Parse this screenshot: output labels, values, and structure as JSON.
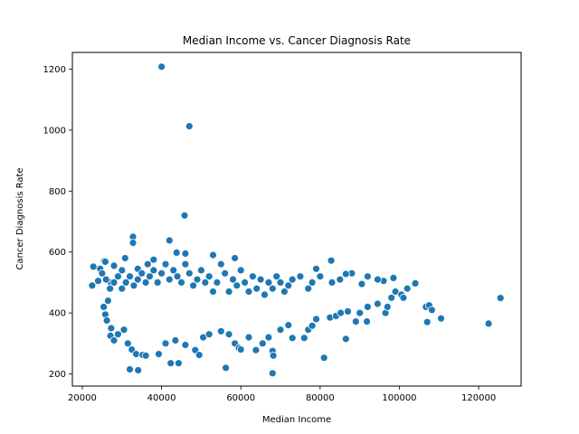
{
  "chart_data": {
    "type": "scatter",
    "title": "Median Income vs. Cancer Diagnosis Rate",
    "xlabel": "Median Income",
    "ylabel": "Cancer Diagnosis Rate",
    "xlim": [
      17500,
      130700
    ],
    "ylim": [
      160,
      1255
    ],
    "xticks": [
      20000,
      40000,
      60000,
      80000,
      100000,
      120000
    ],
    "yticks": [
      200,
      400,
      600,
      800,
      1000,
      1200
    ],
    "grid": false,
    "legend": "none",
    "point_color": "#1f77b4",
    "series": [
      {
        "points": [
          [
            40000,
            1208
          ],
          [
            47000,
            1013
          ],
          [
            45800,
            720
          ],
          [
            42000,
            638
          ],
          [
            32800,
            650
          ],
          [
            32800,
            630
          ],
          [
            43800,
            598
          ],
          [
            46000,
            595
          ],
          [
            53000,
            590
          ],
          [
            30800,
            580
          ],
          [
            58500,
            580
          ],
          [
            82800,
            572
          ],
          [
            22800,
            552
          ],
          [
            25500,
            570
          ],
          [
            25800,
            568
          ],
          [
            24500,
            545
          ],
          [
            28000,
            555
          ],
          [
            30000,
            540
          ],
          [
            34000,
            545
          ],
          [
            38000,
            575
          ],
          [
            36500,
            560
          ],
          [
            27200,
            500
          ],
          [
            24000,
            505
          ],
          [
            22500,
            490
          ],
          [
            26500,
            440
          ],
          [
            25400,
            420
          ],
          [
            25800,
            395
          ],
          [
            26200,
            375
          ],
          [
            27300,
            350
          ],
          [
            27100,
            325
          ],
          [
            28000,
            310
          ],
          [
            29000,
            330
          ],
          [
            30500,
            345
          ],
          [
            31500,
            300
          ],
          [
            32500,
            280
          ],
          [
            33600,
            265
          ],
          [
            35200,
            262
          ],
          [
            36000,
            260
          ],
          [
            34100,
            212
          ],
          [
            32000,
            215
          ],
          [
            42300,
            235
          ],
          [
            44300,
            235
          ],
          [
            39300,
            265
          ],
          [
            41000,
            300
          ],
          [
            43500,
            310
          ],
          [
            46000,
            295
          ],
          [
            48500,
            278
          ],
          [
            49500,
            262
          ],
          [
            50500,
            320
          ],
          [
            52000,
            330
          ],
          [
            55000,
            340
          ],
          [
            56200,
            220
          ],
          [
            57000,
            330
          ],
          [
            58500,
            300
          ],
          [
            59500,
            285
          ],
          [
            60000,
            280
          ],
          [
            62000,
            320
          ],
          [
            63800,
            278
          ],
          [
            65500,
            300
          ],
          [
            67000,
            320
          ],
          [
            68000,
            275
          ],
          [
            68200,
            260
          ],
          [
            68000,
            202
          ],
          [
            70000,
            345
          ],
          [
            72000,
            360
          ],
          [
            73000,
            318
          ],
          [
            76000,
            318
          ],
          [
            77000,
            345
          ],
          [
            78000,
            358
          ],
          [
            79000,
            380
          ],
          [
            81000,
            253
          ],
          [
            82500,
            385
          ],
          [
            84000,
            390
          ],
          [
            85200,
            400
          ],
          [
            86500,
            315
          ],
          [
            87000,
            405
          ],
          [
            89000,
            372
          ],
          [
            90000,
            400
          ],
          [
            91800,
            372
          ],
          [
            92000,
            420
          ],
          [
            94500,
            430
          ],
          [
            96500,
            400
          ],
          [
            97000,
            420
          ],
          [
            98000,
            450
          ],
          [
            99000,
            470
          ],
          [
            100500,
            460
          ],
          [
            101000,
            450
          ],
          [
            102000,
            480
          ],
          [
            104000,
            497
          ],
          [
            106700,
            420
          ],
          [
            107000,
            370
          ],
          [
            107500,
            425
          ],
          [
            108200,
            410
          ],
          [
            110500,
            382
          ],
          [
            122500,
            365
          ],
          [
            125500,
            449
          ],
          [
            96000,
            505
          ],
          [
            98500,
            515
          ],
          [
            94500,
            510
          ],
          [
            92000,
            520
          ],
          [
            90500,
            495
          ],
          [
            88000,
            530
          ],
          [
            86500,
            528
          ],
          [
            85000,
            510
          ],
          [
            83000,
            500
          ],
          [
            80000,
            520
          ],
          [
            79000,
            545
          ],
          [
            78000,
            500
          ],
          [
            77000,
            480
          ],
          [
            75000,
            520
          ],
          [
            73000,
            510
          ],
          [
            72000,
            490
          ],
          [
            71000,
            470
          ],
          [
            70000,
            500
          ],
          [
            69000,
            520
          ],
          [
            68000,
            480
          ],
          [
            67000,
            500
          ],
          [
            66000,
            460
          ],
          [
            65000,
            510
          ],
          [
            64000,
            480
          ],
          [
            63000,
            520
          ],
          [
            62000,
            470
          ],
          [
            61000,
            500
          ],
          [
            60000,
            540
          ],
          [
            59000,
            490
          ],
          [
            58000,
            510
          ],
          [
            57000,
            470
          ],
          [
            56000,
            530
          ],
          [
            55000,
            560
          ],
          [
            54000,
            500
          ],
          [
            53000,
            470
          ],
          [
            52000,
            520
          ],
          [
            51000,
            500
          ],
          [
            50000,
            540
          ],
          [
            49000,
            510
          ],
          [
            48000,
            490
          ],
          [
            47000,
            530
          ],
          [
            46000,
            560
          ],
          [
            45000,
            500
          ],
          [
            44000,
            520
          ],
          [
            43000,
            540
          ],
          [
            42000,
            510
          ],
          [
            41000,
            560
          ],
          [
            40000,
            530
          ],
          [
            39000,
            500
          ],
          [
            38000,
            540
          ],
          [
            37000,
            520
          ],
          [
            36000,
            500
          ],
          [
            35000,
            530
          ],
          [
            34000,
            510
          ],
          [
            33000,
            490
          ],
          [
            32000,
            520
          ],
          [
            31000,
            500
          ],
          [
            30000,
            480
          ],
          [
            29000,
            520
          ],
          [
            28000,
            500
          ],
          [
            27000,
            480
          ],
          [
            26000,
            510
          ],
          [
            25000,
            530
          ]
        ]
      }
    ]
  }
}
